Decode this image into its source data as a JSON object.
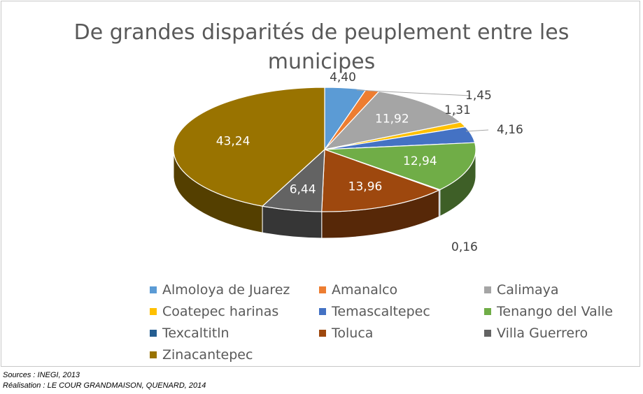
{
  "chart_data": {
    "type": "pie",
    "title": "De grandes disparités de peuplement entre les municipes",
    "categories": [
      "Almoloya de Juarez",
      "Amanalco",
      "Calimaya",
      "Coatepec harinas",
      "Temascaltepec",
      "Tenango del Valle",
      "Texcaltitln",
      "Toluca",
      "Villa Guerrero",
      "Zinacantepec"
    ],
    "values": [
      4.4,
      1.45,
      11.92,
      1.31,
      4.16,
      12.94,
      0.16,
      13.96,
      6.44,
      43.24
    ],
    "value_labels": [
      "4,40",
      "1,45",
      "11,92",
      "1,31",
      "4,16",
      "12,94",
      "0,16",
      "13,96",
      "6,44",
      "43,24"
    ],
    "colors": [
      "#5b9bd5",
      "#ed7d31",
      "#a5a5a5",
      "#ffc000",
      "#4472c4",
      "#70ad47",
      "#255e91",
      "#9e480e",
      "#636363",
      "#997300"
    ],
    "legend_position": "bottom",
    "style": "3d"
  },
  "footer": {
    "source": "Sources : INEGI, 2013",
    "credit": "Réalisation : LE COUR GRANDMAISON, QUENARD, 2014"
  }
}
